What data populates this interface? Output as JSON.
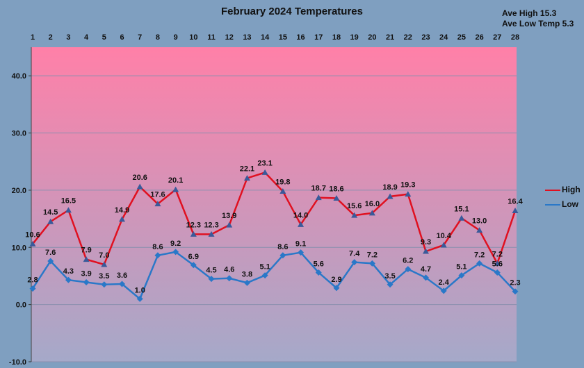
{
  "title": "February 2024 Temperatures",
  "stats": {
    "ave_high": "Ave High 15.3",
    "ave_low": "Ave Low Temp 5.3"
  },
  "colors": {
    "background": "#7f9fc0",
    "plot_top": "#ff80a8",
    "plot_bottom": "#a5a9c9",
    "high": "#e01020",
    "low": "#2a78c8"
  },
  "chart_data": {
    "type": "line",
    "x": [
      1,
      2,
      3,
      4,
      5,
      6,
      7,
      8,
      9,
      10,
      11,
      12,
      13,
      14,
      15,
      16,
      17,
      18,
      19,
      20,
      21,
      22,
      23,
      24,
      25,
      26,
      27,
      28
    ],
    "series": [
      {
        "name": "High",
        "values": [
          10.6,
          14.5,
          16.5,
          7.9,
          7.0,
          14.9,
          20.6,
          17.6,
          20.1,
          12.3,
          12.3,
          13.9,
          22.1,
          23.1,
          19.8,
          14.0,
          18.7,
          18.6,
          15.6,
          16.0,
          18.9,
          19.3,
          9.3,
          10.4,
          15.1,
          13.0,
          7.2,
          16.4
        ],
        "labels": [
          "10.6",
          "14.5",
          "16.5",
          "7.9",
          "7.0",
          "14.9",
          "20.6",
          "17.6",
          "20.1",
          "12.3",
          "12.3",
          "13.9",
          "22.1",
          "23.1",
          "19.8",
          "14.0",
          "18.7",
          "18.6",
          "15.6",
          "16.0",
          "18.9",
          "19.3",
          "9.3",
          "10.4",
          "15.1",
          "13.0",
          "7.2",
          "16.4"
        ]
      },
      {
        "name": "Low",
        "values": [
          2.8,
          7.6,
          4.3,
          3.9,
          3.5,
          3.6,
          1.0,
          8.6,
          9.2,
          6.9,
          4.5,
          4.6,
          3.8,
          5.1,
          8.6,
          9.1,
          5.6,
          2.9,
          7.4,
          7.2,
          3.5,
          6.2,
          4.7,
          2.4,
          5.1,
          7.2,
          5.6,
          2.3
        ],
        "labels": [
          "2.8",
          "7.6",
          "4.3",
          "3.9",
          "3.5",
          "3.6",
          "1.0",
          "8.6",
          "9.2",
          "6.9",
          "4.5",
          "4.6",
          "3.8",
          "5.1",
          "8.6",
          "9.1",
          "5.6",
          "2.9",
          "7.4",
          "7.2",
          "3.5",
          "6.2",
          "4.7",
          "2.4",
          "5.1",
          "7.2",
          "5.6",
          "2.3"
        ]
      }
    ],
    "ylim": [
      -10,
      45
    ],
    "yticks": [
      "-10.0",
      "0.0",
      "10.0",
      "20.0",
      "30.0",
      "40.0"
    ],
    "ytick_values": [
      -10,
      0,
      10,
      20,
      30,
      40
    ],
    "xaxis_position": "top",
    "legend_position": "right",
    "grid": "horizontal at 0, 10, 20, 30, 40"
  }
}
